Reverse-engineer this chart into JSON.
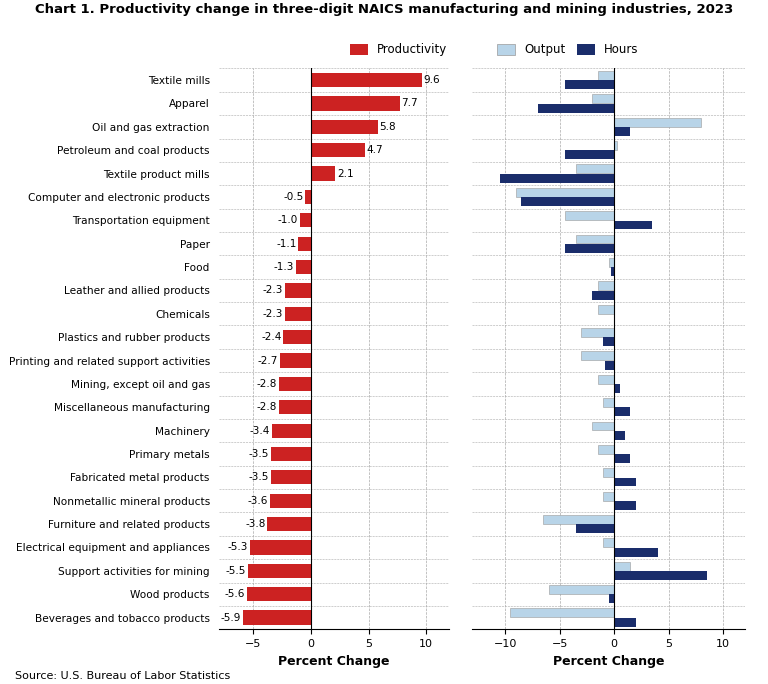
{
  "title": "Chart 1. Productivity change in three-digit NAICS manufacturing and mining industries, 2023",
  "source": "Source: U.S. Bureau of Labor Statistics",
  "industries": [
    "Textile mills",
    "Apparel",
    "Oil and gas extraction",
    "Petroleum and coal products",
    "Textile product mills",
    "Computer and electronic products",
    "Transportation equipment",
    "Paper",
    "Food",
    "Leather and allied products",
    "Chemicals",
    "Plastics and rubber products",
    "Printing and related support activities",
    "Mining, except oil and gas",
    "Miscellaneous manufacturing",
    "Machinery",
    "Primary metals",
    "Fabricated metal products",
    "Nonmetallic mineral products",
    "Furniture and related products",
    "Electrical equipment and appliances",
    "Support activities for mining",
    "Wood products",
    "Beverages and tobacco products"
  ],
  "productivity": [
    9.6,
    7.7,
    5.8,
    4.7,
    2.1,
    -0.5,
    -1.0,
    -1.1,
    -1.3,
    -2.3,
    -2.3,
    -2.4,
    -2.7,
    -2.8,
    -2.8,
    -3.4,
    -3.5,
    -3.5,
    -3.6,
    -3.8,
    -5.3,
    -5.5,
    -5.6,
    -5.9
  ],
  "output": [
    -1.5,
    -2.0,
    8.0,
    0.3,
    -3.5,
    -9.0,
    -4.5,
    -3.5,
    -0.5,
    -1.5,
    -1.5,
    -3.0,
    -3.0,
    -1.5,
    -1.0,
    -2.0,
    -1.5,
    -1.0,
    -1.0,
    -6.5,
    -1.0,
    1.5,
    -6.0,
    -9.5
  ],
  "hours": [
    -4.5,
    -7.0,
    1.5,
    -4.5,
    -10.5,
    -8.5,
    3.5,
    -4.5,
    -0.3,
    -2.0,
    0.0,
    -1.0,
    -0.8,
    0.5,
    1.5,
    1.0,
    1.5,
    2.0,
    2.0,
    -3.5,
    4.0,
    8.5,
    -0.5,
    2.0
  ],
  "productivity_color": "#cc2222",
  "output_color": "#b8d4e8",
  "hours_color": "#1a2d6b",
  "left_xlim": [
    -8,
    12
  ],
  "right_xlim": [
    -13,
    12
  ],
  "left_xticks": [
    -5,
    0,
    5,
    10
  ],
  "right_xticks": [
    -10,
    -5,
    0,
    5,
    10
  ],
  "xlabel": "Percent Change",
  "bar_height": 0.38
}
